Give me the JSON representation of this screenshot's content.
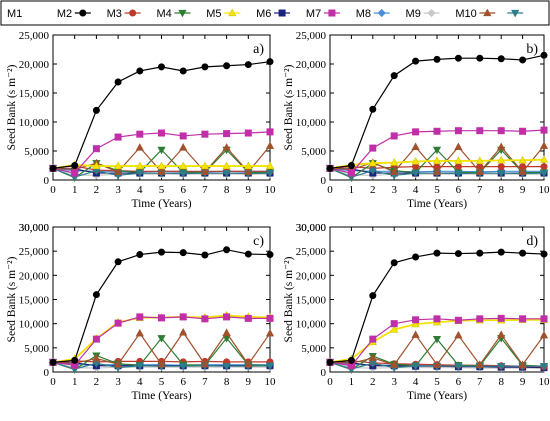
{
  "legend": {
    "entries": [
      {
        "label": "M1",
        "color": "#000000",
        "marker": "none"
      },
      {
        "label": "M2",
        "color": "#000000",
        "marker": "circle"
      },
      {
        "label": "M3",
        "color": "#c0392b",
        "marker": "circle"
      },
      {
        "label": "M4",
        "color": "#2e7d32",
        "marker": "triangle-down"
      },
      {
        "label": "M5",
        "color": "#f5e600",
        "marker": "triangle-up"
      },
      {
        "label": "M6",
        "color": "#1a237e",
        "marker": "square"
      },
      {
        "label": "M7",
        "color": "#c02fa8",
        "marker": "square"
      },
      {
        "label": "M8",
        "color": "#4a90d9",
        "marker": "diamond"
      },
      {
        "label": "M9",
        "color": "#c8c8c8",
        "marker": "diamond"
      },
      {
        "label": "M10",
        "color": "#a0522d",
        "marker": "triangle-up"
      },
      {
        "label": "",
        "color": "#2e7d8a",
        "marker": "triangle-down"
      }
    ]
  },
  "axes": {
    "xlabel": "Time (Years)",
    "ylabel": "Seed Bank (s m⁻²)",
    "xticks": [
      "0",
      "1",
      "2",
      "3",
      "4",
      "5",
      "6",
      "7",
      "8",
      "9",
      "10"
    ],
    "yticks": [
      "0",
      "5,000",
      "10,000",
      "15,000",
      "20,000",
      "25,000"
    ]
  },
  "chart_data": [
    {
      "panel": "a)",
      "type": "line",
      "x": [
        0,
        1,
        2,
        3,
        4,
        5,
        6,
        7,
        8,
        9,
        10
      ],
      "ylim": [
        0,
        25000
      ],
      "xlim": [
        0,
        10
      ],
      "series": [
        {
          "name": "M1",
          "values": [
            2000,
            2000,
            2000,
            2000,
            2000,
            2000,
            2000,
            2000,
            2000,
            2000,
            2000
          ]
        },
        {
          "name": "M2",
          "values": [
            2000,
            2500,
            12000,
            16900,
            18800,
            19500,
            18800,
            19500,
            19700,
            19900,
            20400
          ]
        },
        {
          "name": "M3",
          "values": [
            2000,
            2400,
            1700,
            1600,
            1500,
            1500,
            1500,
            1500,
            1500,
            1500,
            1500
          ]
        },
        {
          "name": "M4",
          "values": [
            2000,
            400,
            2900,
            1600,
            1300,
            5200,
            1300,
            1300,
            5200,
            1300,
            1300
          ]
        },
        {
          "name": "M5",
          "values": [
            2000,
            2600,
            2400,
            2400,
            2400,
            2400,
            2400,
            2400,
            2400,
            2400,
            2400
          ]
        },
        {
          "name": "M6",
          "values": [
            2000,
            1900,
            1200,
            1200,
            1200,
            1200,
            1200,
            1200,
            1200,
            1200,
            1200
          ]
        },
        {
          "name": "M7",
          "values": [
            2000,
            1200,
            5400,
            7400,
            7900,
            8100,
            7600,
            7900,
            8000,
            8100,
            8300
          ]
        },
        {
          "name": "M8",
          "values": [
            2000,
            1600,
            1500,
            1500,
            1400,
            1500,
            1500,
            1400,
            1500,
            1500,
            1500
          ]
        },
        {
          "name": "M9",
          "values": [
            2000,
            900,
            800,
            1000,
            1000,
            1000,
            1000,
            1000,
            1000,
            1000,
            1000
          ]
        },
        {
          "name": "M10",
          "values": [
            2000,
            1800,
            2900,
            1400,
            5600,
            1400,
            5600,
            1400,
            5600,
            1400,
            5900
          ]
        },
        {
          "name": "",
          "values": [
            2000,
            500,
            1600,
            800,
            1200,
            1200,
            1100,
            1200,
            1200,
            1100,
            1200
          ]
        }
      ]
    },
    {
      "panel": "b)",
      "type": "line",
      "x": [
        0,
        1,
        2,
        3,
        4,
        5,
        6,
        7,
        8,
        9,
        10
      ],
      "ylim": [
        0,
        25000
      ],
      "xlim": [
        0,
        10
      ],
      "series": [
        {
          "name": "M1",
          "values": [
            2000,
            2000,
            2000,
            2000,
            2000,
            2000,
            2000,
            2000,
            2000,
            2000,
            2000
          ]
        },
        {
          "name": "M2",
          "values": [
            2000,
            2500,
            12200,
            18000,
            20500,
            20800,
            21000,
            21000,
            20900,
            20700,
            21500
          ]
        },
        {
          "name": "M3",
          "values": [
            2000,
            2300,
            2000,
            2200,
            2300,
            2300,
            2300,
            2300,
            2300,
            2300,
            2300
          ]
        },
        {
          "name": "M4",
          "values": [
            2000,
            400,
            2900,
            1600,
            1300,
            5200,
            1300,
            1300,
            5200,
            1300,
            1300
          ]
        },
        {
          "name": "M5",
          "values": [
            2000,
            2600,
            2900,
            3000,
            3200,
            3300,
            3300,
            3300,
            3400,
            3400,
            3500
          ]
        },
        {
          "name": "M6",
          "values": [
            2000,
            1900,
            1200,
            1200,
            1200,
            1200,
            1200,
            1200,
            1200,
            1200,
            1200
          ]
        },
        {
          "name": "M7",
          "values": [
            2000,
            1200,
            5500,
            7600,
            8300,
            8400,
            8500,
            8500,
            8500,
            8400,
            8600
          ]
        },
        {
          "name": "M8",
          "values": [
            2000,
            1600,
            1500,
            1500,
            1400,
            1500,
            1500,
            1400,
            1500,
            1500,
            1500
          ]
        },
        {
          "name": "M9",
          "values": [
            2000,
            900,
            800,
            1000,
            1000,
            1000,
            1000,
            1000,
            1000,
            1000,
            1000
          ]
        },
        {
          "name": "M10",
          "values": [
            2000,
            1800,
            3000,
            1400,
            5700,
            1400,
            5700,
            1400,
            5700,
            1400,
            5900
          ]
        },
        {
          "name": "",
          "values": [
            2000,
            500,
            1600,
            800,
            1200,
            1200,
            1100,
            1200,
            1200,
            1100,
            1200
          ]
        }
      ]
    },
    {
      "panel": "c)",
      "type": "line",
      "x": [
        0,
        1,
        2,
        3,
        4,
        5,
        6,
        7,
        8,
        9,
        10
      ],
      "ylim": [
        0,
        30000
      ],
      "xlim": [
        0,
        10
      ],
      "series": [
        {
          "name": "M1",
          "values": [
            2000,
            2000,
            2000,
            2000,
            2000,
            2000,
            2000,
            2000,
            2000,
            2000,
            2000
          ]
        },
        {
          "name": "M2",
          "values": [
            2000,
            2400,
            16000,
            22800,
            24300,
            24800,
            24700,
            24200,
            25300,
            24400,
            24300
          ]
        },
        {
          "name": "M3",
          "values": [
            2000,
            2300,
            2100,
            2200,
            2200,
            2200,
            2100,
            2200,
            2100,
            2100,
            2100
          ]
        },
        {
          "name": "M4",
          "values": [
            2000,
            500,
            3400,
            1700,
            1400,
            7000,
            1500,
            1400,
            7000,
            1500,
            1300
          ]
        },
        {
          "name": "M5",
          "values": [
            2000,
            2700,
            6900,
            10300,
            11200,
            11300,
            11400,
            11300,
            11700,
            11400,
            11300
          ]
        },
        {
          "name": "M6",
          "values": [
            2000,
            1900,
            1300,
            1300,
            1300,
            1300,
            1300,
            1300,
            1300,
            1300,
            1300
          ]
        },
        {
          "name": "M7",
          "values": [
            2000,
            1400,
            6800,
            10100,
            11400,
            11200,
            11400,
            11000,
            11400,
            11100,
            11100
          ]
        },
        {
          "name": "M8",
          "values": [
            2000,
            1500,
            1500,
            1500,
            1500,
            1500,
            1400,
            1500,
            1500,
            1500,
            1500
          ]
        },
        {
          "name": "M9",
          "values": [
            2000,
            900,
            800,
            1000,
            1000,
            1000,
            1000,
            1000,
            1000,
            1000,
            1000
          ]
        },
        {
          "name": "M10",
          "values": [
            2000,
            1800,
            2800,
            1600,
            8000,
            1600,
            8200,
            1600,
            8100,
            1600,
            8000
          ]
        },
        {
          "name": "",
          "values": [
            2000,
            600,
            1800,
            900,
            1300,
            1200,
            1200,
            1300,
            1200,
            1200,
            1300
          ]
        }
      ]
    },
    {
      "panel": "d)",
      "type": "line",
      "x": [
        0,
        1,
        2,
        3,
        4,
        5,
        6,
        7,
        8,
        9,
        10
      ],
      "ylim": [
        0,
        30000
      ],
      "xlim": [
        0,
        10
      ],
      "series": [
        {
          "name": "M1",
          "values": [
            2000,
            2000,
            2000,
            2000,
            2000,
            2000,
            2000,
            2000,
            2000,
            2000,
            2000
          ]
        },
        {
          "name": "M2",
          "values": [
            2000,
            2400,
            15800,
            22600,
            23800,
            24600,
            24500,
            24600,
            24800,
            24600,
            24400
          ]
        },
        {
          "name": "M3",
          "values": [
            2000,
            2300,
            1900,
            1700,
            1600,
            1500,
            1400,
            1400,
            1300,
            1200,
            1100
          ]
        },
        {
          "name": "M4",
          "values": [
            2000,
            500,
            3300,
            1600,
            1300,
            6800,
            1400,
            1300,
            7000,
            1400,
            1200
          ]
        },
        {
          "name": "M5",
          "values": [
            2000,
            2700,
            6200,
            8800,
            9900,
            10300,
            10600,
            10700,
            10700,
            10800,
            10800
          ]
        },
        {
          "name": "M6",
          "values": [
            2000,
            1900,
            1300,
            1300,
            1200,
            1200,
            1100,
            1100,
            1000,
            1000,
            900
          ]
        },
        {
          "name": "M7",
          "values": [
            2000,
            1300,
            6800,
            10000,
            10800,
            11000,
            10700,
            11000,
            11100,
            11000,
            11000
          ]
        },
        {
          "name": "M8",
          "values": [
            2000,
            1500,
            1500,
            1400,
            1400,
            1300,
            1300,
            1200,
            1200,
            1100,
            1100
          ]
        },
        {
          "name": "M9",
          "values": [
            2000,
            900,
            800,
            900,
            900,
            900,
            900,
            800,
            800,
            800,
            800
          ]
        },
        {
          "name": "M10",
          "values": [
            2000,
            1800,
            2900,
            1500,
            7700,
            1500,
            7600,
            1500,
            7700,
            1500,
            7600
          ]
        },
        {
          "name": "",
          "values": [
            2000,
            600,
            1800,
            900,
            1300,
            1200,
            1200,
            1200,
            1200,
            1200,
            1200
          ]
        }
      ]
    }
  ]
}
